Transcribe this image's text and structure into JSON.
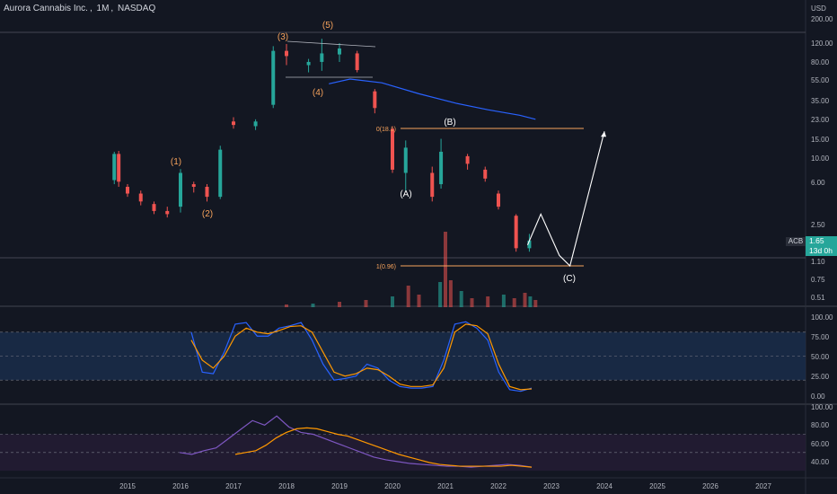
{
  "header": {
    "symbol_name": "Aurora Cannabis Inc.",
    "interval": "1M",
    "exchange": "NASDAQ",
    "currency": "USD"
  },
  "price_axis": {
    "labels": [
      "200.00",
      "120.00",
      "80.00",
      "55.00",
      "35.00",
      "23.00",
      "15.00",
      "10.00",
      "6.00",
      "2.50",
      "1.10",
      "0.75",
      "0.51"
    ],
    "current": "1.65",
    "countdown": "13d 0h",
    "ticker": "ACB",
    "current_color": "#26a69a"
  },
  "oscillator1_axis": [
    "100.00",
    "75.00",
    "50.00",
    "25.00",
    "0.00"
  ],
  "oscillator2_axis": [
    "100.00",
    "80.00",
    "60.00",
    "40.00"
  ],
  "time_axis": [
    "2015",
    "2016",
    "2017",
    "2018",
    "2019",
    "2020",
    "2021",
    "2022",
    "2023",
    "2024",
    "2025",
    "2026",
    "2027"
  ],
  "annotations": {
    "wave1": "(1)",
    "wave2": "(2)",
    "wave3": "(3)",
    "wave4": "(4)",
    "wave5": "(5)",
    "waveA": "(A)",
    "waveB": "(B)",
    "waveC": "(C)",
    "fib0": "0(18.1)",
    "fib1": "1(0.96)"
  },
  "colors": {
    "background": "#131722",
    "up": "#26a69a",
    "down": "#ef5350",
    "wave_label": "#f7a35c",
    "fib_line": "#f7a35c",
    "ma_line": "#2962ff",
    "stoch_k": "#2962ff",
    "stoch_d": "#ff9800",
    "band_fill": "#1a2d4a"
  },
  "chart_data": {
    "type": "candlestick",
    "title": "Aurora Cannabis Inc., 1M, NASDAQ",
    "y_scale": "log",
    "candles": [
      {
        "t": "2014-10",
        "o": 6.0,
        "h": 11.0,
        "l": 5.5,
        "c": 10.5
      },
      {
        "t": "2014-11",
        "o": 10.5,
        "h": 11.2,
        "l": 5.2,
        "c": 5.8
      },
      {
        "t": "2015-01",
        "o": 5.2,
        "h": 5.5,
        "l": 4.2,
        "c": 4.5
      },
      {
        "t": "2015-04",
        "o": 4.5,
        "h": 4.8,
        "l": 3.5,
        "c": 3.8
      },
      {
        "t": "2015-07",
        "o": 3.6,
        "h": 3.8,
        "l": 2.9,
        "c": 3.1
      },
      {
        "t": "2015-10",
        "o": 3.1,
        "h": 3.4,
        "l": 2.7,
        "c": 2.9
      },
      {
        "t": "2016-01",
        "o": 3.4,
        "h": 7.6,
        "l": 3.0,
        "c": 7.0
      },
      {
        "t": "2016-04",
        "o": 5.5,
        "h": 5.8,
        "l": 4.6,
        "c": 5.2
      },
      {
        "t": "2016-07",
        "o": 5.2,
        "h": 5.5,
        "l": 3.8,
        "c": 4.2
      },
      {
        "t": "2016-10",
        "o": 4.2,
        "h": 12.5,
        "l": 4.0,
        "c": 11.5
      },
      {
        "t": "2017-01",
        "o": 21.0,
        "h": 23.0,
        "l": 18.0,
        "c": 19.5
      },
      {
        "t": "2017-06",
        "o": 19.0,
        "h": 22.0,
        "l": 17.5,
        "c": 21.0
      },
      {
        "t": "2017-10",
        "o": 30.0,
        "h": 105.0,
        "l": 28.0,
        "c": 95.0
      },
      {
        "t": "2018-01",
        "o": 95.0,
        "h": 110.0,
        "l": 70.0,
        "c": 85.0
      },
      {
        "t": "2018-06",
        "o": 70.0,
        "h": 80.0,
        "l": 60.0,
        "c": 75.0
      },
      {
        "t": "2018-09",
        "o": 75.0,
        "h": 123.0,
        "l": 62.0,
        "c": 90.0
      },
      {
        "t": "2019-01",
        "o": 88.0,
        "h": 112.0,
        "l": 75.0,
        "c": 100.0
      },
      {
        "t": "2019-05",
        "o": 90.0,
        "h": 95.0,
        "l": 60.0,
        "c": 63.0
      },
      {
        "t": "2019-09",
        "o": 40.0,
        "h": 42.0,
        "l": 25.0,
        "c": 28.0
      },
      {
        "t": "2020-01",
        "o": 18.0,
        "h": 19.0,
        "l": 7.0,
        "c": 7.5
      },
      {
        "t": "2020-04",
        "o": 7.0,
        "h": 14.0,
        "l": 4.8,
        "c": 12.0
      },
      {
        "t": "2020-10",
        "o": 7.0,
        "h": 8.0,
        "l": 3.8,
        "c": 4.2
      },
      {
        "t": "2020-12",
        "o": 5.5,
        "h": 14.5,
        "l": 5.0,
        "c": 11.0
      },
      {
        "t": "2021-06",
        "o": 10.0,
        "h": 10.5,
        "l": 7.5,
        "c": 8.5
      },
      {
        "t": "2021-10",
        "o": 7.5,
        "h": 8.0,
        "l": 5.8,
        "c": 6.2
      },
      {
        "t": "2022-01",
        "o": 4.5,
        "h": 4.8,
        "l": 3.2,
        "c": 3.4
      },
      {
        "t": "2022-05",
        "o": 2.8,
        "h": 2.9,
        "l": 1.3,
        "c": 1.4
      },
      {
        "t": "2022-08",
        "o": 1.4,
        "h": 1.9,
        "l": 1.3,
        "c": 1.65
      }
    ],
    "ma_line": {
      "name": "MA",
      "values": [
        [
          2018.8,
          47
        ],
        [
          2019.2,
          52
        ],
        [
          2019.8,
          48
        ],
        [
          2020.5,
          38
        ],
        [
          2021.2,
          31
        ],
        [
          2021.8,
          27
        ],
        [
          2022.4,
          24
        ],
        [
          2022.7,
          22
        ]
      ]
    },
    "fib_levels": [
      {
        "label": "0(18.1)",
        "value": 18.1
      },
      {
        "label": "1(0.96)",
        "value": 0.96
      }
    ],
    "projection": [
      [
        2022.55,
        1.5
      ],
      [
        2022.8,
        2.9
      ],
      [
        2023.15,
        1.2
      ],
      [
        2023.35,
        0.96
      ],
      [
        2024.0,
        17.0
      ]
    ],
    "osc1": {
      "k": [
        80,
        30,
        28,
        55,
        90,
        92,
        75,
        75,
        85,
        88,
        92,
        70,
        40,
        20,
        22,
        25,
        40,
        35,
        20,
        12,
        10,
        10,
        12,
        45,
        90,
        93,
        85,
        70,
        30,
        8,
        6,
        10
      ],
      "d": [
        70,
        45,
        35,
        50,
        75,
        85,
        80,
        78,
        82,
        87,
        88,
        80,
        55,
        30,
        25,
        28,
        35,
        33,
        25,
        15,
        12,
        12,
        14,
        35,
        80,
        90,
        88,
        78,
        40,
        12,
        8,
        9
      ]
    },
    "osc2": {
      "k": [
        50,
        48,
        52,
        55,
        65,
        75,
        85,
        80,
        90,
        78,
        72,
        70,
        65,
        60,
        55,
        50,
        45,
        42,
        40,
        38,
        37,
        36,
        35,
        35,
        34,
        35,
        36,
        37,
        36,
        34
      ],
      "d": [
        48,
        50,
        52,
        58,
        66,
        72,
        76,
        77,
        76,
        73,
        70,
        68,
        64,
        60,
        56,
        52,
        48,
        45,
        42,
        39,
        37,
        36,
        35,
        35,
        35,
        35,
        35,
        36,
        35,
        34
      ]
    }
  }
}
